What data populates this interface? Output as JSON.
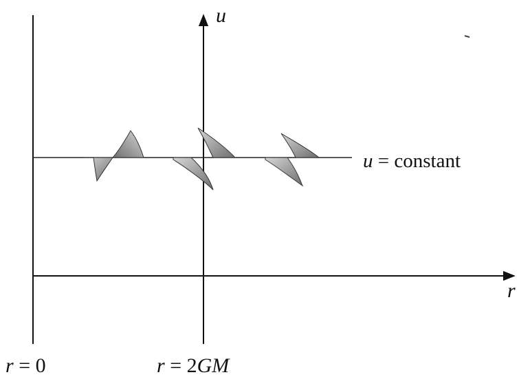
{
  "axes": {
    "u_label": "u",
    "r_label": "r"
  },
  "line_label": {
    "var": "u",
    "text": " = constant"
  },
  "marks": {
    "r0": {
      "var": "r",
      "text": " = 0"
    },
    "r2gm": {
      "var": "r",
      "text": " = 2",
      "suffix": "GM"
    }
  },
  "colors": {
    "ink": "#111111",
    "shade_light": "#c9c9c9",
    "shade_dark": "#7a7a7a"
  }
}
